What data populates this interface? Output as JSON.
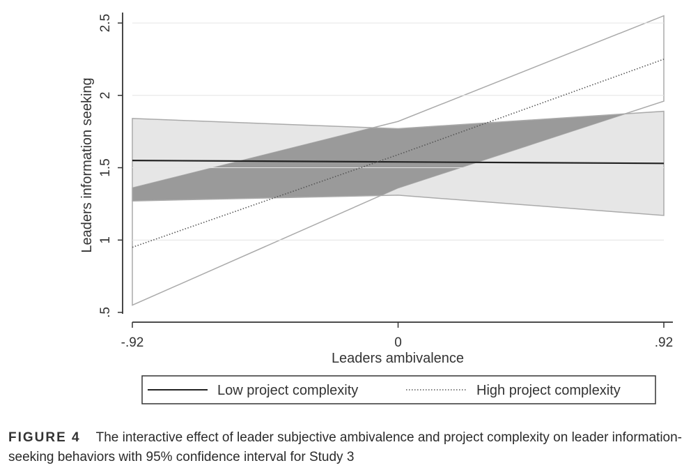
{
  "chart_data": {
    "type": "line",
    "title": "",
    "xlabel": "Leaders ambivalence",
    "ylabel": "Leaders information seeking",
    "x": [
      -0.92,
      0,
      0.92
    ],
    "x_tick_values": [
      -0.92,
      0,
      0.92
    ],
    "x_tick_labels": [
      "-.92",
      "0",
      ".92"
    ],
    "y_tick_values": [
      0.5,
      1,
      1.5,
      2,
      2.5
    ],
    "y_tick_labels": [
      ".5",
      "1",
      "1.5",
      "2",
      "2.5"
    ],
    "xlim": [
      -0.92,
      0.92
    ],
    "ylim": [
      0.5,
      2.5
    ],
    "series": [
      {
        "name": "Low project complexity",
        "style": "solid",
        "values": [
          1.55,
          1.54,
          1.53
        ],
        "ci_lower": [
          1.27,
          1.31,
          1.17
        ],
        "ci_upper": [
          1.84,
          1.77,
          1.89
        ]
      },
      {
        "name": "High project complexity",
        "style": "dotted",
        "values": [
          0.95,
          1.59,
          2.25
        ],
        "ci_lower": [
          0.55,
          1.36,
          1.96
        ],
        "ci_upper": [
          1.36,
          1.82,
          2.55
        ]
      }
    ],
    "legend_position": "bottom",
    "grid": true,
    "colors": {
      "low_line": "#222222",
      "high_line": "#555555",
      "low_band": "#e6e6e6",
      "high_band": "#ffffff",
      "overlap_band": "#9a9a9a",
      "band_edge": "#aaaaaa",
      "axis": "#333333",
      "grid": "#e4e4e4"
    }
  },
  "caption": {
    "label": "FIGURE 4",
    "text": "The interactive effect of leader subjective ambivalence and project complexity on leader information-seeking behaviors with 95% confidence interval for Study 3"
  }
}
